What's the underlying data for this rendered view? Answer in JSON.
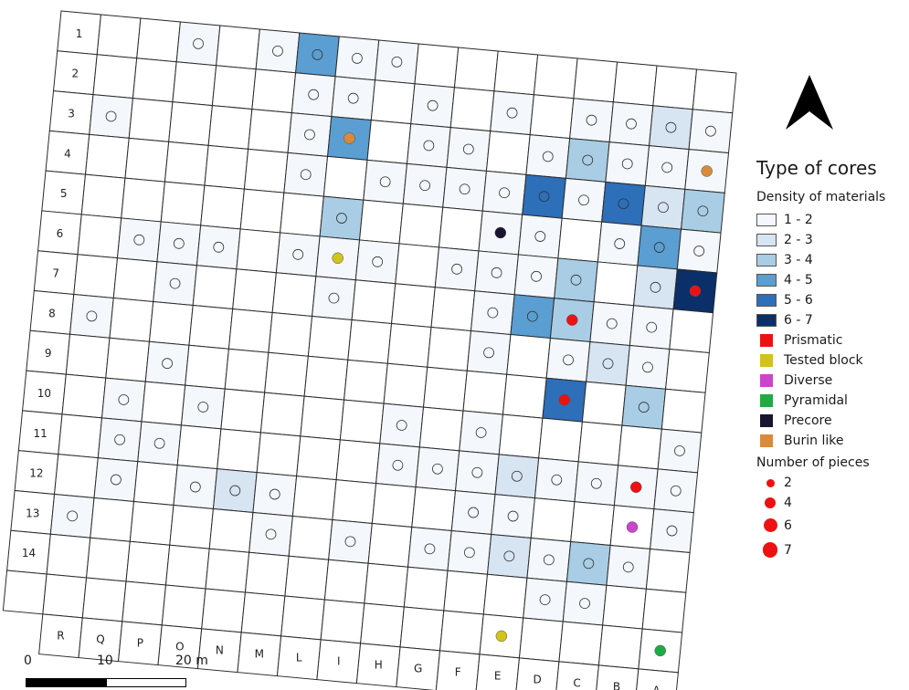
{
  "row_labels": [
    "1",
    "2",
    "3",
    "4",
    "5",
    "6",
    "7",
    "8",
    "9",
    "10",
    "11",
    "12",
    "13",
    "14"
  ],
  "col_labels": [
    "R",
    "Q",
    "P",
    "O",
    "N",
    "M",
    "L",
    "I",
    "H",
    "G",
    "F",
    "E",
    "D",
    "C",
    "B",
    "A"
  ],
  "density_colors": {
    "1": "#f4f8fd",
    "2": "#d7e4f2",
    "3": "#a9cde4",
    "4": "#5a9ed2",
    "5": "#2d6fb8",
    "6": "#0b2f68"
  },
  "cells": [
    {
      "r": 1,
      "c": 3,
      "d": 1
    },
    {
      "r": 1,
      "c": 5,
      "d": 1
    },
    {
      "r": 1,
      "c": 6,
      "d": 4
    },
    {
      "r": 1,
      "c": 7,
      "d": 1
    },
    {
      "r": 1,
      "c": 8,
      "d": 1
    },
    {
      "r": 2,
      "c": 6,
      "d": 1
    },
    {
      "r": 2,
      "c": 7,
      "d": 1
    },
    {
      "r": 2,
      "c": 9,
      "d": 1
    },
    {
      "r": 2,
      "c": 11,
      "d": 1
    },
    {
      "r": 2,
      "c": 13,
      "d": 1
    },
    {
      "r": 2,
      "c": 14,
      "d": 1
    },
    {
      "r": 2,
      "c": 15,
      "d": 2
    },
    {
      "r": 2,
      "c": 16,
      "d": 1
    },
    {
      "r": 3,
      "c": 1,
      "d": 1
    },
    {
      "r": 3,
      "c": 6,
      "d": 1
    },
    {
      "r": 3,
      "c": 7,
      "d": 4
    },
    {
      "r": 3,
      "c": 9,
      "d": 1
    },
    {
      "r": 3,
      "c": 10,
      "d": 1
    },
    {
      "r": 3,
      "c": 12,
      "d": 1
    },
    {
      "r": 3,
      "c": 13,
      "d": 3
    },
    {
      "r": 3,
      "c": 14,
      "d": 1
    },
    {
      "r": 3,
      "c": 15,
      "d": 1
    },
    {
      "r": 3,
      "c": 16,
      "d": 1
    },
    {
      "r": 4,
      "c": 6,
      "d": 1
    },
    {
      "r": 4,
      "c": 8,
      "d": 1
    },
    {
      "r": 4,
      "c": 9,
      "d": 1
    },
    {
      "r": 4,
      "c": 10,
      "d": 1
    },
    {
      "r": 4,
      "c": 11,
      "d": 1
    },
    {
      "r": 4,
      "c": 12,
      "d": 5
    },
    {
      "r": 4,
      "c": 13,
      "d": 1
    },
    {
      "r": 4,
      "c": 14,
      "d": 5
    },
    {
      "r": 4,
      "c": 15,
      "d": 2
    },
    {
      "r": 4,
      "c": 16,
      "d": 3
    },
    {
      "r": 5,
      "c": 7,
      "d": 3
    },
    {
      "r": 5,
      "c": 11,
      "d": 1
    },
    {
      "r": 5,
      "c": 12,
      "d": 1
    },
    {
      "r": 5,
      "c": 14,
      "d": 1
    },
    {
      "r": 5,
      "c": 15,
      "d": 4
    },
    {
      "r": 5,
      "c": 16,
      "d": 1
    },
    {
      "r": 6,
      "c": 2,
      "d": 1
    },
    {
      "r": 6,
      "c": 3,
      "d": 1
    },
    {
      "r": 6,
      "c": 4,
      "d": 1
    },
    {
      "r": 6,
      "c": 6,
      "d": 1
    },
    {
      "r": 6,
      "c": 7,
      "d": 1
    },
    {
      "r": 6,
      "c": 8,
      "d": 1
    },
    {
      "r": 6,
      "c": 10,
      "d": 1
    },
    {
      "r": 6,
      "c": 11,
      "d": 1
    },
    {
      "r": 6,
      "c": 12,
      "d": 1
    },
    {
      "r": 6,
      "c": 13,
      "d": 3
    },
    {
      "r": 6,
      "c": 15,
      "d": 2
    },
    {
      "r": 6,
      "c": 16,
      "d": 6
    },
    {
      "r": 7,
      "c": 3,
      "d": 1
    },
    {
      "r": 7,
      "c": 7,
      "d": 1
    },
    {
      "r": 7,
      "c": 11,
      "d": 1
    },
    {
      "r": 7,
      "c": 12,
      "d": 4
    },
    {
      "r": 7,
      "c": 13,
      "d": 3
    },
    {
      "r": 7,
      "c": 14,
      "d": 1
    },
    {
      "r": 7,
      "c": 15,
      "d": 1
    },
    {
      "r": 8,
      "c": 1,
      "d": 1
    },
    {
      "r": 8,
      "c": 11,
      "d": 1
    },
    {
      "r": 8,
      "c": 13,
      "d": 1
    },
    {
      "r": 8,
      "c": 14,
      "d": 2
    },
    {
      "r": 8,
      "c": 15,
      "d": 1
    },
    {
      "r": 9,
      "c": 3,
      "d": 1
    },
    {
      "r": 9,
      "c": 13,
      "d": 5
    },
    {
      "r": 9,
      "c": 15,
      "d": 3
    },
    {
      "r": 10,
      "c": 2,
      "d": 1
    },
    {
      "r": 10,
      "c": 4,
      "d": 1
    },
    {
      "r": 10,
      "c": 9,
      "d": 1
    },
    {
      "r": 10,
      "c": 11,
      "d": 1
    },
    {
      "r": 10,
      "c": 16,
      "d": 1
    },
    {
      "r": 11,
      "c": 2,
      "d": 1
    },
    {
      "r": 11,
      "c": 3,
      "d": 1
    },
    {
      "r": 11,
      "c": 9,
      "d": 1
    },
    {
      "r": 11,
      "c": 10,
      "d": 1
    },
    {
      "r": 11,
      "c": 11,
      "d": 1
    },
    {
      "r": 11,
      "c": 12,
      "d": 2
    },
    {
      "r": 11,
      "c": 13,
      "d": 1
    },
    {
      "r": 11,
      "c": 14,
      "d": 1
    },
    {
      "r": 11,
      "c": 15,
      "d": 1
    },
    {
      "r": 11,
      "c": 16,
      "d": 1
    },
    {
      "r": 12,
      "c": 2,
      "d": 1
    },
    {
      "r": 12,
      "c": 4,
      "d": 1
    },
    {
      "r": 12,
      "c": 5,
      "d": 2
    },
    {
      "r": 12,
      "c": 6,
      "d": 1
    },
    {
      "r": 12,
      "c": 11,
      "d": 1
    },
    {
      "r": 12,
      "c": 12,
      "d": 1
    },
    {
      "r": 12,
      "c": 16,
      "d": 1
    },
    {
      "r": 13,
      "c": 1,
      "d": 1
    },
    {
      "r": 13,
      "c": 6,
      "d": 1
    },
    {
      "r": 13,
      "c": 8,
      "d": 1
    },
    {
      "r": 13,
      "c": 10,
      "d": 1
    },
    {
      "r": 13,
      "c": 11,
      "d": 1
    },
    {
      "r": 13,
      "c": 12,
      "d": 2
    },
    {
      "r": 13,
      "c": 13,
      "d": 1
    },
    {
      "r": 13,
      "c": 14,
      "d": 3
    },
    {
      "r": 13,
      "c": 15,
      "d": 1
    },
    {
      "r": 14,
      "c": 13,
      "d": 1
    },
    {
      "r": 14,
      "c": 14,
      "d": 1
    }
  ],
  "cores": [
    {
      "r": 3,
      "c": 7,
      "type": "Burin like"
    },
    {
      "r": 3,
      "c": 16,
      "type": "Burin like"
    },
    {
      "r": 5,
      "c": 11,
      "type": "Precore"
    },
    {
      "r": 6,
      "c": 7,
      "type": "Tested block"
    },
    {
      "r": 6,
      "c": 16,
      "type": "Prismatic"
    },
    {
      "r": 7,
      "c": 13,
      "type": "Prismatic"
    },
    {
      "r": 9,
      "c": 13,
      "type": "Prismatic"
    },
    {
      "r": 11,
      "c": 15,
      "type": "Prismatic"
    },
    {
      "r": 12,
      "c": 15,
      "type": "Diverse"
    },
    {
      "r": 15,
      "c": 12,
      "type": "Tested block"
    },
    {
      "r": 15,
      "c": 16,
      "type": "Pyramidal"
    }
  ],
  "legend": {
    "title": "Type of cores",
    "density_title": "Density of materials",
    "density": [
      {
        "label": "1 - 2",
        "color": "#f4f8fd"
      },
      {
        "label": "2 - 3",
        "color": "#d7e4f2"
      },
      {
        "label": "3 - 4",
        "color": "#a9cde4"
      },
      {
        "label": "4 - 5",
        "color": "#5a9ed2"
      },
      {
        "label": "5 - 6",
        "color": "#2d6fb8"
      },
      {
        "label": "6 - 7",
        "color": "#0b2f68"
      }
    ],
    "types": [
      {
        "label": "Prismatic",
        "color": "#ee1111"
      },
      {
        "label": "Tested block",
        "color": "#d2c21c"
      },
      {
        "label": "Diverse",
        "color": "#cc44cc"
      },
      {
        "label": "Pyramidal",
        "color": "#1faa44"
      },
      {
        "label": "Precore",
        "color": "#1a1430"
      },
      {
        "label": "Burin like",
        "color": "#d98a3a"
      }
    ],
    "pieces_title": "Number of pieces",
    "pieces": [
      {
        "label": "2",
        "value": 2
      },
      {
        "label": "4",
        "value": 4
      },
      {
        "label": "6",
        "value": 6
      },
      {
        "label": "7",
        "value": 7
      }
    ]
  },
  "scale": {
    "labels": [
      "0",
      "10",
      "20 m"
    ]
  }
}
